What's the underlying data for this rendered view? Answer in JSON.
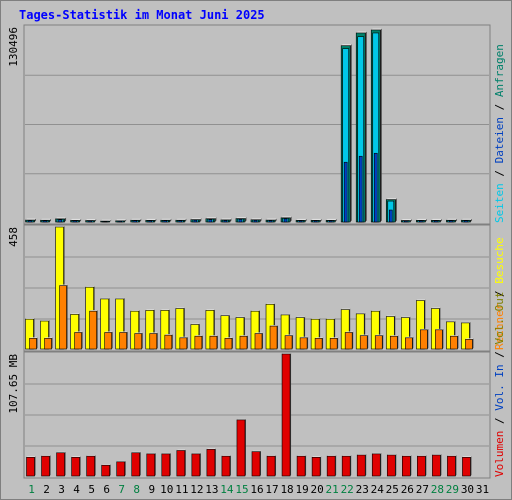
{
  "title": "Tages-Statistik im Monat Juni 2025",
  "colors": {
    "anfragen": "#00806a",
    "dateien": "#0040c0",
    "seiten": "#00c8e8",
    "besuche": "#ffff00",
    "rechner": "#ff8000",
    "vol_out": "#808000",
    "vol_in": "#0040c0",
    "volumen": "#e00000",
    "day_weekend": "#008040",
    "day_weekday": "#000000"
  },
  "chart_data": [
    {
      "type": "bar",
      "name": "panel-requests",
      "ymax_label": "130496",
      "ylim": [
        0,
        130496
      ],
      "categories": [
        "1",
        "2",
        "3",
        "4",
        "5",
        "6",
        "7",
        "8",
        "9",
        "10",
        "11",
        "12",
        "13",
        "14",
        "15",
        "16",
        "17",
        "18",
        "19",
        "20",
        "21",
        "22",
        "23",
        "24",
        "25",
        "26",
        "27",
        "28",
        "29",
        "30",
        "31"
      ],
      "legend": [
        "Anfragen",
        "Dateien",
        "Seiten"
      ],
      "legend_separator": "/",
      "series": [
        {
          "name": "Anfragen",
          "values": [
            1300,
            1200,
            2100,
            1100,
            1000,
            600,
            800,
            1200,
            1100,
            1200,
            1200,
            1600,
            2200,
            1400,
            2300,
            1500,
            1300,
            2800,
            1100,
            1100,
            1100,
            118000,
            126500,
            128500,
            15000,
            1000,
            1100,
            1100,
            1200,
            1200,
            0
          ]
        },
        {
          "name": "Dateien",
          "values": [
            900,
            800,
            1500,
            800,
            700,
            400,
            600,
            900,
            800,
            900,
            900,
            1200,
            1600,
            1000,
            1700,
            1100,
            900,
            2100,
            800,
            800,
            800,
            40000,
            44000,
            46000,
            8000,
            700,
            800,
            800,
            900,
            900,
            0
          ]
        },
        {
          "name": "Seiten",
          "values": [
            1100,
            1000,
            1800,
            900,
            850,
            500,
            700,
            1000,
            950,
            1000,
            1000,
            1400,
            1900,
            1200,
            2000,
            1300,
            1100,
            2400,
            950,
            950,
            950,
            116000,
            124000,
            126500,
            14000,
            850,
            950,
            950,
            1000,
            1000,
            0
          ]
        }
      ]
    },
    {
      "type": "bar",
      "name": "panel-visits",
      "ymax_label": "458",
      "ylim": [
        0,
        458
      ],
      "legend": [
        "Besuche",
        "Rechner"
      ],
      "legend_separator": "/",
      "series": [
        {
          "name": "Besuche",
          "values": [
            112,
            105,
            458,
            130,
            232,
            188,
            188,
            142,
            145,
            145,
            152,
            92,
            145,
            125,
            118,
            142,
            168,
            128,
            118,
            112,
            112,
            148,
            132,
            142,
            122,
            118,
            182,
            152,
            102,
            98,
            0
          ]
        },
        {
          "name": "Rechner",
          "values": [
            40,
            40,
            238,
            62,
            142,
            62,
            62,
            58,
            58,
            52,
            42,
            48,
            48,
            40,
            48,
            58,
            86,
            50,
            42,
            40,
            40,
            62,
            50,
            50,
            48,
            42,
            72,
            72,
            48,
            36,
            0
          ]
        }
      ]
    },
    {
      "type": "bar",
      "name": "panel-volume",
      "ymax_label": "107.65 MB",
      "ylim": [
        0,
        107.65
      ],
      "legend": [
        "Volumen",
        "Vol. In",
        "Vol. Out"
      ],
      "legend_separator": "/",
      "series": [
        {
          "name": "Volumen",
          "values": [
            16.5,
            17.5,
            20.5,
            16.5,
            17.5,
            9.5,
            12.5,
            20.5,
            19.5,
            19.5,
            22.5,
            19.5,
            23.5,
            17.5,
            49.5,
            21.5,
            17.5,
            107.65,
            17.5,
            16.5,
            17.5,
            17.5,
            18.5,
            19.5,
            18.5,
            17.5,
            17.5,
            18.5,
            17.5,
            16.5,
            0
          ]
        }
      ]
    }
  ],
  "weekend_days": [
    1,
    7,
    8,
    14,
    15,
    21,
    22,
    28,
    29
  ]
}
